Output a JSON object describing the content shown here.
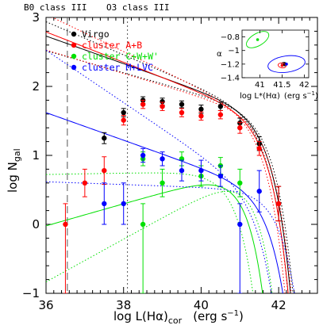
{
  "chart_data": {
    "type": "scatter",
    "xlabel": "log L(Hα)",
    "xlabel_sub": "cor",
    "xlabel_units": "(erg s",
    "xlabel_units_exp": "−1",
    "xlabel_units_close": ")",
    "ylabel": "log N",
    "ylabel_sub": "gal",
    "xlim": [
      36,
      43
    ],
    "ylim": [
      -1,
      3
    ],
    "x_ticks": [
      36,
      38,
      40,
      42
    ],
    "y_ticks": [
      -1,
      0,
      1,
      2,
      3
    ],
    "reference_lines": [
      {
        "label": "B0 class III",
        "x": 36.55,
        "style": "dashed"
      },
      {
        "label": "O3 class III",
        "x": 38.1,
        "style": "dotted"
      }
    ],
    "series": [
      {
        "name": "Virgo",
        "color": "#000000",
        "points": [
          {
            "x": 37.5,
            "y": 1.25,
            "err": [
              0.08,
              0.08
            ]
          },
          {
            "x": 38.0,
            "y": 1.62,
            "err": [
              0.06,
              0.06
            ]
          },
          {
            "x": 38.5,
            "y": 1.8,
            "err": [
              0.05,
              0.05
            ]
          },
          {
            "x": 39.0,
            "y": 1.78,
            "err": [
              0.05,
              0.05
            ]
          },
          {
            "x": 39.5,
            "y": 1.74,
            "err": [
              0.05,
              0.05
            ]
          },
          {
            "x": 40.0,
            "y": 1.67,
            "err": [
              0.06,
              0.06
            ]
          },
          {
            "x": 40.5,
            "y": 1.71,
            "err": [
              0.06,
              0.06
            ]
          },
          {
            "x": 41.0,
            "y": 1.47,
            "err": [
              0.07,
              0.07
            ]
          },
          {
            "x": 41.5,
            "y": 1.17,
            "err": [
              0.1,
              0.1
            ]
          },
          {
            "x": 42.0,
            "y": 0.3,
            "err": [
              0.25,
              0.25
            ]
          }
        ]
      },
      {
        "name": "cluster A+B",
        "color": "#ff0000",
        "points": [
          {
            "x": 36.5,
            "y": 0.0,
            "err": [
              1.0,
              0.3
            ]
          },
          {
            "x": 37.0,
            "y": 0.6,
            "err": [
              0.2,
              0.2
            ]
          },
          {
            "x": 37.5,
            "y": 0.78,
            "err": [
              0.2,
              0.2
            ]
          },
          {
            "x": 38.0,
            "y": 1.51,
            "err": [
              0.07,
              0.07
            ]
          },
          {
            "x": 38.5,
            "y": 1.74,
            "err": [
              0.06,
              0.06
            ]
          },
          {
            "x": 39.0,
            "y": 1.71,
            "err": [
              0.06,
              0.06
            ]
          },
          {
            "x": 39.5,
            "y": 1.62,
            "err": [
              0.06,
              0.06
            ]
          },
          {
            "x": 40.0,
            "y": 1.57,
            "err": [
              0.06,
              0.06
            ]
          },
          {
            "x": 40.5,
            "y": 1.59,
            "err": [
              0.06,
              0.06
            ]
          },
          {
            "x": 41.0,
            "y": 1.4,
            "err": [
              0.08,
              0.08
            ]
          },
          {
            "x": 41.5,
            "y": 1.1,
            "err": [
              0.1,
              0.1
            ]
          },
          {
            "x": 42.0,
            "y": 0.3,
            "err": [
              0.25,
              0.25
            ]
          }
        ]
      },
      {
        "name": "cluster C+W+W'",
        "color": "#00e000",
        "points": [
          {
            "x": 38.5,
            "y": 0.0,
            "err": [
              1.0,
              0.3
            ]
          },
          {
            "x": 38.5,
            "y": 0.95,
            "err": [
              0.1,
              0.1
            ]
          },
          {
            "x": 39.0,
            "y": 0.6,
            "err": [
              0.2,
              0.2
            ]
          },
          {
            "x": 39.5,
            "y": 0.95,
            "err": [
              0.1,
              0.1
            ]
          },
          {
            "x": 40.0,
            "y": 0.7,
            "err": [
              0.15,
              0.15
            ]
          },
          {
            "x": 40.5,
            "y": 0.85,
            "err": [
              0.12,
              0.12
            ]
          },
          {
            "x": 41.0,
            "y": 0.6,
            "err": [
              0.2,
              0.2
            ]
          }
        ]
      },
      {
        "name": "cluster M+LVC",
        "color": "#0000ff",
        "points": [
          {
            "x": 37.5,
            "y": 0.3,
            "err": [
              0.3,
              0.3
            ]
          },
          {
            "x": 38.0,
            "y": 0.3,
            "err": [
              0.3,
              0.3
            ]
          },
          {
            "x": 38.5,
            "y": 1.0,
            "err": [
              0.1,
              0.1
            ]
          },
          {
            "x": 39.0,
            "y": 0.95,
            "err": [
              0.1,
              0.1
            ]
          },
          {
            "x": 39.5,
            "y": 0.78,
            "err": [
              0.15,
              0.15
            ]
          },
          {
            "x": 40.0,
            "y": 0.78,
            "err": [
              0.15,
              0.15
            ]
          },
          {
            "x": 40.5,
            "y": 0.7,
            "err": [
              0.15,
              0.15
            ]
          },
          {
            "x": 41.0,
            "y": 0.0,
            "err": [
              1.0,
              0.3
            ]
          },
          {
            "x": 41.5,
            "y": 0.48,
            "err": [
              0.3,
              0.3
            ]
          }
        ]
      }
    ],
    "fits": [
      {
        "series": "Virgo",
        "color": "#000000",
        "log_phi": 1.62,
        "log_lstar": 41.55,
        "alpha": -1.2,
        "band": 0.04
      },
      {
        "series": "cluster A+B",
        "color": "#ff0000",
        "log_phi": 1.58,
        "log_lstar": 41.5,
        "alpha": -1.22,
        "band": 0.05
      },
      {
        "series": "cluster C+W+W'",
        "color": "#00e000",
        "log_phi": 0.77,
        "log_lstar": 40.95,
        "alpha": -0.84,
        "band": 0.15
      },
      {
        "series": "cluster M+LVC",
        "color": "#0000ff",
        "log_phi": 0.5,
        "log_lstar": 41.6,
        "alpha": -1.2,
        "band": 0.18
      }
    ],
    "inset": {
      "xlabel": "log L*(Hα)",
      "xlabel_units": "(erg s",
      "xlabel_units_exp": "−1",
      "xlabel_units_close": ")",
      "ylabel": "α",
      "xlim": [
        40.6,
        42.1
      ],
      "ylim": [
        -1.4,
        -0.7
      ],
      "x_ticks": [
        41,
        41.5,
        42
      ],
      "x_tick_labels": [
        "41",
        "41.5",
        "42"
      ],
      "y_ticks": [
        -0.8,
        -1,
        -1.2,
        -1.4
      ],
      "y_tick_labels": [
        "−0.8",
        "−1",
        "−1.2",
        "−1.4"
      ]
    }
  }
}
